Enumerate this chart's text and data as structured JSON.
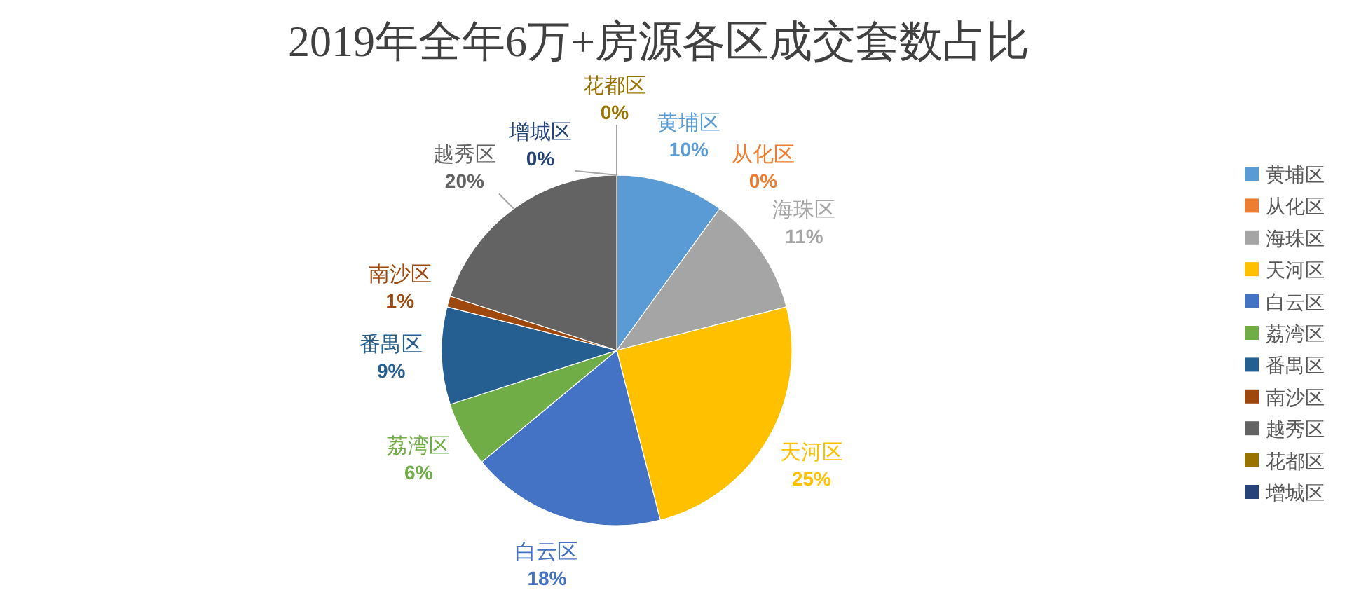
{
  "chart_data": {
    "type": "pie",
    "title": "2019年全年6万+房源各区成交套数占比",
    "categories": [
      "黄埔区",
      "从化区",
      "海珠区",
      "天河区",
      "白云区",
      "荔湾区",
      "番禺区",
      "南沙区",
      "越秀区",
      "花都区",
      "增城区"
    ],
    "values": [
      10,
      0,
      11,
      25,
      18,
      6,
      9,
      1,
      20,
      0,
      0
    ],
    "value_labels": [
      "10%",
      "0%",
      "11%",
      "25%",
      "18%",
      "6%",
      "9%",
      "1%",
      "20%",
      "0%",
      "0%"
    ],
    "colors": [
      "#5b9bd5",
      "#ed7d31",
      "#a5a5a5",
      "#ffc000",
      "#4472c4",
      "#70ad47",
      "#255e91",
      "#9e480e",
      "#636363",
      "#997300",
      "#264478"
    ],
    "legend": "right"
  }
}
